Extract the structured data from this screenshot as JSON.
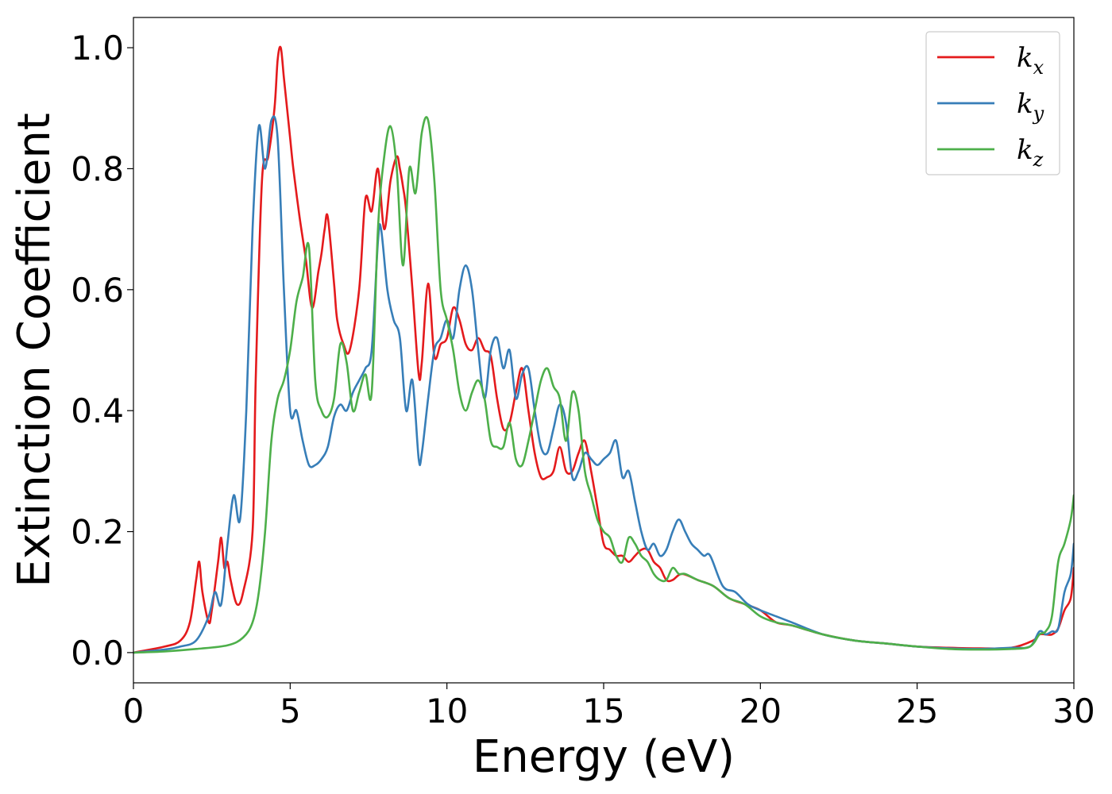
{
  "chart_data": {
    "type": "line",
    "xlabel": "Energy (eV)",
    "ylabel": "Extinction Coefficient",
    "xlim": [
      0,
      30
    ],
    "ylim": [
      -0.05,
      1.05
    ],
    "xticks": [
      0,
      5,
      10,
      15,
      20,
      25,
      30
    ],
    "xtick_labels": [
      "0",
      "5",
      "10",
      "15",
      "20",
      "25",
      "30"
    ],
    "yticks": [
      0.0,
      0.2,
      0.4,
      0.6,
      0.8,
      1.0
    ],
    "ytick_labels": [
      "0.0",
      "0.2",
      "0.4",
      "0.6",
      "0.8",
      "1.0"
    ],
    "grid": false,
    "legend_position": "top-right",
    "series": [
      {
        "name": "k_x",
        "label_base": "k",
        "label_sub": "x",
        "color": "#e41a1c",
        "x": [
          0,
          1,
          1.5,
          1.8,
          2.0,
          2.1,
          2.2,
          2.4,
          2.5,
          2.7,
          2.8,
          2.9,
          3.0,
          3.1,
          3.3,
          3.5,
          3.8,
          3.9,
          4.1,
          4.3,
          4.5,
          4.6,
          4.7,
          4.8,
          4.9,
          5.0,
          5.1,
          5.3,
          5.5,
          5.7,
          5.9,
          6.0,
          6.1,
          6.2,
          6.4,
          6.5,
          6.7,
          6.9,
          7.2,
          7.4,
          7.6,
          7.8,
          8.0,
          8.2,
          8.4,
          8.5,
          8.6,
          8.7,
          8.9,
          9.1,
          9.2,
          9.4,
          9.6,
          9.8,
          10.0,
          10.2,
          10.4,
          10.6,
          10.8,
          11.0,
          11.2,
          11.4,
          11.6,
          11.8,
          12.0,
          12.2,
          12.4,
          12.6,
          12.8,
          13.0,
          13.2,
          13.4,
          13.6,
          13.8,
          14.0,
          14.2,
          14.4,
          14.6,
          14.8,
          15.0,
          15.2,
          15.4,
          15.6,
          15.8,
          16.0,
          16.2,
          16.4,
          16.6,
          16.8,
          17.0,
          17.2,
          17.5,
          18.0,
          18.5,
          19.0,
          19.5,
          20.0,
          20.5,
          21.0,
          22.0,
          23.0,
          24.0,
          25.0,
          26.0,
          27.0,
          28.0,
          28.7,
          28.9,
          29.1,
          29.3,
          29.5,
          29.7,
          29.9,
          30.0
        ],
        "values": [
          0.0,
          0.01,
          0.02,
          0.05,
          0.12,
          0.15,
          0.1,
          0.05,
          0.07,
          0.15,
          0.19,
          0.14,
          0.15,
          0.12,
          0.08,
          0.1,
          0.2,
          0.45,
          0.78,
          0.82,
          0.9,
          0.98,
          1.0,
          0.95,
          0.9,
          0.85,
          0.8,
          0.72,
          0.65,
          0.57,
          0.63,
          0.66,
          0.7,
          0.72,
          0.61,
          0.55,
          0.51,
          0.5,
          0.6,
          0.75,
          0.73,
          0.8,
          0.7,
          0.78,
          0.82,
          0.8,
          0.77,
          0.73,
          0.6,
          0.46,
          0.48,
          0.61,
          0.49,
          0.51,
          0.52,
          0.57,
          0.55,
          0.51,
          0.5,
          0.52,
          0.5,
          0.49,
          0.42,
          0.37,
          0.38,
          0.43,
          0.47,
          0.4,
          0.33,
          0.29,
          0.29,
          0.3,
          0.34,
          0.3,
          0.3,
          0.33,
          0.35,
          0.3,
          0.24,
          0.18,
          0.17,
          0.16,
          0.16,
          0.15,
          0.16,
          0.17,
          0.17,
          0.15,
          0.14,
          0.12,
          0.12,
          0.13,
          0.12,
          0.11,
          0.09,
          0.08,
          0.07,
          0.05,
          0.045,
          0.03,
          0.02,
          0.015,
          0.01,
          0.008,
          0.007,
          0.008,
          0.02,
          0.03,
          0.03,
          0.03,
          0.04,
          0.07,
          0.09,
          0.14
        ]
      },
      {
        "name": "k_y",
        "label_base": "k",
        "label_sub": "y",
        "color": "#377eb8",
        "x": [
          0,
          1,
          1.5,
          2.0,
          2.4,
          2.6,
          2.8,
          3.0,
          3.2,
          3.4,
          3.6,
          3.8,
          4.0,
          4.2,
          4.4,
          4.6,
          4.8,
          5.0,
          5.2,
          5.4,
          5.6,
          5.8,
          6.0,
          6.2,
          6.4,
          6.6,
          6.8,
          7.0,
          7.2,
          7.4,
          7.6,
          7.8,
          7.9,
          8.1,
          8.3,
          8.5,
          8.7,
          8.9,
          9.1,
          9.2,
          9.4,
          9.6,
          9.8,
          10.0,
          10.2,
          10.4,
          10.6,
          10.8,
          11.0,
          11.2,
          11.4,
          11.6,
          11.8,
          12.0,
          12.2,
          12.4,
          12.6,
          12.8,
          13.0,
          13.2,
          13.4,
          13.6,
          13.8,
          14.0,
          14.2,
          14.4,
          14.6,
          14.8,
          15.0,
          15.2,
          15.4,
          15.6,
          15.8,
          16.0,
          16.2,
          16.4,
          16.6,
          16.8,
          17.0,
          17.2,
          17.4,
          17.6,
          17.8,
          18.0,
          18.2,
          18.4,
          18.8,
          19.2,
          19.6,
          20.0,
          20.5,
          21.0,
          22.0,
          23.0,
          24.0,
          25.0,
          26.0,
          27.0,
          28.0,
          28.6,
          28.9,
          29.1,
          29.3,
          29.5,
          29.7,
          29.9,
          30.0
        ],
        "values": [
          0.0,
          0.005,
          0.01,
          0.02,
          0.06,
          0.1,
          0.08,
          0.18,
          0.26,
          0.22,
          0.4,
          0.7,
          0.87,
          0.8,
          0.88,
          0.85,
          0.6,
          0.4,
          0.4,
          0.35,
          0.31,
          0.31,
          0.32,
          0.34,
          0.39,
          0.41,
          0.4,
          0.43,
          0.45,
          0.47,
          0.5,
          0.68,
          0.7,
          0.6,
          0.55,
          0.52,
          0.4,
          0.45,
          0.32,
          0.33,
          0.42,
          0.5,
          0.52,
          0.55,
          0.52,
          0.6,
          0.64,
          0.6,
          0.5,
          0.42,
          0.5,
          0.52,
          0.47,
          0.5,
          0.42,
          0.46,
          0.47,
          0.4,
          0.34,
          0.33,
          0.37,
          0.41,
          0.38,
          0.29,
          0.3,
          0.33,
          0.32,
          0.31,
          0.32,
          0.33,
          0.35,
          0.29,
          0.3,
          0.25,
          0.2,
          0.17,
          0.18,
          0.16,
          0.17,
          0.2,
          0.22,
          0.2,
          0.18,
          0.17,
          0.16,
          0.16,
          0.11,
          0.1,
          0.08,
          0.07,
          0.06,
          0.05,
          0.03,
          0.02,
          0.015,
          0.01,
          0.007,
          0.006,
          0.008,
          0.01,
          0.035,
          0.03,
          0.035,
          0.04,
          0.1,
          0.13,
          0.18
        ]
      },
      {
        "name": "k_z",
        "label_base": "k",
        "label_sub": "z",
        "color": "#4daf4a",
        "x": [
          0,
          1,
          2.0,
          3.0,
          3.5,
          3.8,
          4.0,
          4.2,
          4.4,
          4.6,
          4.8,
          5.0,
          5.2,
          5.4,
          5.6,
          5.8,
          6.0,
          6.2,
          6.4,
          6.6,
          6.8,
          7.0,
          7.2,
          7.4,
          7.6,
          7.8,
          8.0,
          8.2,
          8.4,
          8.6,
          8.8,
          9.0,
          9.2,
          9.4,
          9.6,
          9.8,
          10.0,
          10.2,
          10.4,
          10.6,
          10.8,
          11.0,
          11.2,
          11.4,
          11.6,
          11.8,
          12.0,
          12.2,
          12.4,
          12.6,
          12.8,
          13.0,
          13.2,
          13.4,
          13.6,
          13.8,
          14.0,
          14.2,
          14.4,
          14.6,
          14.8,
          15.0,
          15.2,
          15.4,
          15.6,
          15.8,
          16.0,
          16.2,
          16.4,
          16.6,
          16.8,
          17.0,
          17.2,
          17.4,
          17.6,
          18.0,
          18.5,
          19.0,
          19.5,
          20.0,
          20.5,
          21.0,
          22.0,
          23.0,
          24.0,
          25.0,
          26.0,
          27.0,
          28.0,
          28.6,
          28.9,
          29.1,
          29.3,
          29.5,
          29.7,
          29.9,
          30.0
        ],
        "values": [
          0.0,
          0.002,
          0.006,
          0.012,
          0.025,
          0.05,
          0.1,
          0.2,
          0.35,
          0.42,
          0.45,
          0.5,
          0.58,
          0.62,
          0.67,
          0.45,
          0.4,
          0.39,
          0.42,
          0.51,
          0.48,
          0.4,
          0.43,
          0.46,
          0.43,
          0.7,
          0.82,
          0.87,
          0.8,
          0.64,
          0.8,
          0.76,
          0.86,
          0.88,
          0.78,
          0.6,
          0.55,
          0.5,
          0.43,
          0.4,
          0.43,
          0.45,
          0.42,
          0.35,
          0.34,
          0.34,
          0.38,
          0.32,
          0.31,
          0.35,
          0.4,
          0.45,
          0.47,
          0.44,
          0.42,
          0.35,
          0.43,
          0.4,
          0.3,
          0.26,
          0.22,
          0.2,
          0.19,
          0.16,
          0.15,
          0.19,
          0.18,
          0.16,
          0.15,
          0.13,
          0.12,
          0.12,
          0.14,
          0.13,
          0.13,
          0.12,
          0.11,
          0.09,
          0.08,
          0.06,
          0.05,
          0.045,
          0.03,
          0.02,
          0.015,
          0.01,
          0.006,
          0.005,
          0.006,
          0.01,
          0.03,
          0.035,
          0.06,
          0.15,
          0.18,
          0.22,
          0.26
        ]
      }
    ]
  }
}
